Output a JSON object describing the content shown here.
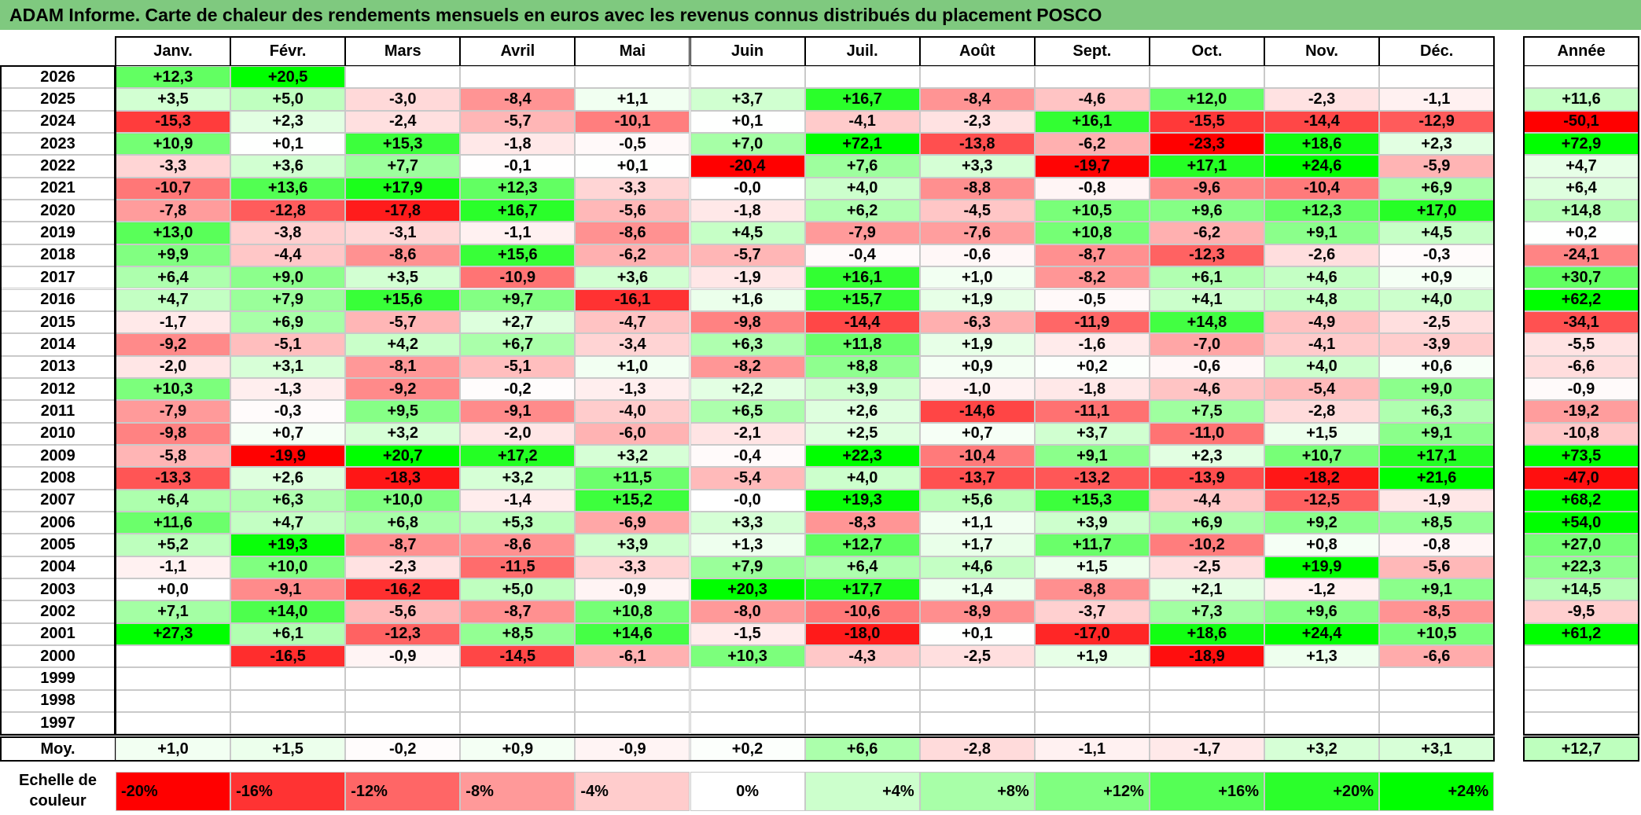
{
  "title": "ADAM Informe. Carte de chaleur des rendements mensuels en euros avec les revenus connus distribués du placement POSCO",
  "chart_data": {
    "type": "heatmap",
    "columns": [
      "Janv.",
      "Févr.",
      "Mars",
      "Avril",
      "Mai",
      "Juin",
      "Juil.",
      "Août",
      "Sept.",
      "Oct.",
      "Nov.",
      "Déc."
    ],
    "year_header": "Année",
    "rows": [
      {
        "year": "2026",
        "months": [
          "+12,3",
          "+20,5",
          "",
          "",
          "",
          "",
          "",
          "",
          "",
          "",
          "",
          ""
        ],
        "annual": ""
      },
      {
        "year": "2025",
        "months": [
          "+3,5",
          "+5,0",
          "-3,0",
          "-8,4",
          "+1,1",
          "+3,7",
          "+16,7",
          "-8,4",
          "-4,6",
          "+12,0",
          "-2,3",
          "-1,1"
        ],
        "annual": "+11,6"
      },
      {
        "year": "2024",
        "months": [
          "-15,3",
          "+2,3",
          "-2,4",
          "-5,7",
          "-10,1",
          "+0,1",
          "-4,1",
          "-2,3",
          "+16,1",
          "-15,5",
          "-14,4",
          "-12,9"
        ],
        "annual": "-50,1"
      },
      {
        "year": "2023",
        "months": [
          "+10,9",
          "+0,1",
          "+15,3",
          "-1,8",
          "-0,5",
          "+7,0",
          "+72,1",
          "-13,8",
          "-6,2",
          "-23,3",
          "+18,6",
          "+2,3"
        ],
        "annual": "+72,9"
      },
      {
        "year": "2022",
        "months": [
          "-3,3",
          "+3,6",
          "+7,7",
          "-0,1",
          "+0,1",
          "-20,4",
          "+7,6",
          "+3,3",
          "-19,7",
          "+17,1",
          "+24,6",
          "-5,9"
        ],
        "annual": "+4,7"
      },
      {
        "year": "2021",
        "months": [
          "-10,7",
          "+13,6",
          "+17,9",
          "+12,3",
          "-3,3",
          "-0,0",
          "+4,0",
          "-8,8",
          "-0,8",
          "-9,6",
          "-10,4",
          "+6,9"
        ],
        "annual": "+6,4"
      },
      {
        "year": "2020",
        "months": [
          "-7,8",
          "-12,8",
          "-17,8",
          "+16,7",
          "-5,6",
          "-1,8",
          "+6,2",
          "-4,5",
          "+10,5",
          "+9,6",
          "+12,3",
          "+17,0"
        ],
        "annual": "+14,8"
      },
      {
        "year": "2019",
        "months": [
          "+13,0",
          "-3,8",
          "-3,1",
          "-1,1",
          "-8,6",
          "+4,5",
          "-7,9",
          "-7,6",
          "+10,8",
          "-6,2",
          "+9,1",
          "+4,5"
        ],
        "annual": "+0,2"
      },
      {
        "year": "2018",
        "months": [
          "+9,9",
          "-4,4",
          "-8,6",
          "+15,6",
          "-6,2",
          "-5,7",
          "-0,4",
          "-0,6",
          "-8,7",
          "-12,3",
          "-2,6",
          "-0,3"
        ],
        "annual": "-24,1"
      },
      {
        "year": "2017",
        "months": [
          "+6,4",
          "+9,0",
          "+3,5",
          "-10,9",
          "+3,6",
          "-1,9",
          "+16,1",
          "+1,0",
          "-8,2",
          "+6,1",
          "+4,6",
          "+0,9"
        ],
        "annual": "+30,7"
      },
      {
        "year": "2016",
        "months": [
          "+4,7",
          "+7,9",
          "+15,6",
          "+9,7",
          "-16,1",
          "+1,6",
          "+15,7",
          "+1,9",
          "-0,5",
          "+4,1",
          "+4,8",
          "+4,0"
        ],
        "annual": "+62,2"
      },
      {
        "year": "2015",
        "months": [
          "-1,7",
          "+6,9",
          "-5,7",
          "+2,7",
          "-4,7",
          "-9,8",
          "-14,4",
          "-6,3",
          "-11,9",
          "+14,8",
          "-4,9",
          "-2,5"
        ],
        "annual": "-34,1"
      },
      {
        "year": "2014",
        "months": [
          "-9,2",
          "-5,1",
          "+4,2",
          "+6,7",
          "-3,4",
          "+6,3",
          "+11,8",
          "+1,9",
          "-1,6",
          "-7,0",
          "-4,1",
          "-3,9"
        ],
        "annual": "-5,5"
      },
      {
        "year": "2013",
        "months": [
          "-2,0",
          "+3,1",
          "-8,1",
          "-5,1",
          "+1,0",
          "-8,2",
          "+8,8",
          "+0,9",
          "+0,2",
          "-0,6",
          "+4,0",
          "+0,6"
        ],
        "annual": "-6,6"
      },
      {
        "year": "2012",
        "months": [
          "+10,3",
          "-1,3",
          "-9,2",
          "-0,2",
          "-1,3",
          "+2,2",
          "+3,9",
          "-1,0",
          "-1,8",
          "-4,6",
          "-5,4",
          "+9,0"
        ],
        "annual": "-0,9"
      },
      {
        "year": "2011",
        "months": [
          "-7,9",
          "-0,3",
          "+9,5",
          "-9,1",
          "-4,0",
          "+6,5",
          "+2,6",
          "-14,6",
          "-11,1",
          "+7,5",
          "-2,8",
          "+6,3"
        ],
        "annual": "-19,2"
      },
      {
        "year": "2010",
        "months": [
          "-9,8",
          "+0,7",
          "+3,2",
          "-2,0",
          "-6,0",
          "-2,1",
          "+2,5",
          "+0,7",
          "+3,7",
          "-11,0",
          "+1,5",
          "+9,1"
        ],
        "annual": "-10,8"
      },
      {
        "year": "2009",
        "months": [
          "-5,8",
          "-19,9",
          "+20,7",
          "+17,2",
          "+3,2",
          "-0,4",
          "+22,3",
          "-10,4",
          "+9,1",
          "+2,3",
          "+10,7",
          "+17,1"
        ],
        "annual": "+73,5"
      },
      {
        "year": "2008",
        "months": [
          "-13,3",
          "+2,6",
          "-18,3",
          "+3,2",
          "+11,5",
          "-5,4",
          "+4,0",
          "-13,7",
          "-13,2",
          "-13,9",
          "-18,2",
          "+21,6"
        ],
        "annual": "-47,0"
      },
      {
        "year": "2007",
        "months": [
          "+6,4",
          "+6,3",
          "+10,0",
          "-1,4",
          "+15,2",
          "-0,0",
          "+19,3",
          "+5,6",
          "+15,3",
          "-4,4",
          "-12,5",
          "-1,9"
        ],
        "annual": "+68,2"
      },
      {
        "year": "2006",
        "months": [
          "+11,6",
          "+4,7",
          "+6,8",
          "+5,3",
          "-6,9",
          "+3,3",
          "-8,3",
          "+1,1",
          "+3,9",
          "+6,9",
          "+9,2",
          "+8,5"
        ],
        "annual": "+54,0"
      },
      {
        "year": "2005",
        "months": [
          "+5,2",
          "+19,3",
          "-8,7",
          "-8,6",
          "+3,9",
          "+1,3",
          "+12,7",
          "+1,7",
          "+11,7",
          "-10,2",
          "+0,8",
          "-0,8"
        ],
        "annual": "+27,0"
      },
      {
        "year": "2004",
        "months": [
          "-1,1",
          "+10,0",
          "-2,3",
          "-11,5",
          "-3,3",
          "+7,9",
          "+6,4",
          "+4,6",
          "+1,5",
          "-2,5",
          "+19,9",
          "-5,6"
        ],
        "annual": "+22,3"
      },
      {
        "year": "2003",
        "months": [
          "+0,0",
          "-9,1",
          "-16,2",
          "+5,0",
          "-0,9",
          "+20,3",
          "+17,7",
          "+1,4",
          "-8,8",
          "+2,1",
          "-1,2",
          "+9,1"
        ],
        "annual": "+14,5"
      },
      {
        "year": "2002",
        "months": [
          "+7,1",
          "+14,0",
          "-5,6",
          "-8,7",
          "+10,8",
          "-8,0",
          "-10,6",
          "-8,9",
          "-3,7",
          "+7,3",
          "+9,6",
          "-8,5"
        ],
        "annual": "-9,5"
      },
      {
        "year": "2001",
        "months": [
          "+27,3",
          "+6,1",
          "-12,3",
          "+8,5",
          "+14,6",
          "-1,5",
          "-18,0",
          "+0,1",
          "-17,0",
          "+18,6",
          "+24,4",
          "+10,5"
        ],
        "annual": "+61,2"
      },
      {
        "year": "2000",
        "months": [
          "",
          "-16,5",
          "-0,9",
          "-14,5",
          "-6,1",
          "+10,3",
          "-4,3",
          "-2,5",
          "+1,9",
          "-18,9",
          "+1,3",
          "-6,6"
        ],
        "annual": ""
      },
      {
        "year": "1999",
        "months": [
          "",
          "",
          "",
          "",
          "",
          "",
          "",
          "",
          "",
          "",
          "",
          ""
        ],
        "annual": ""
      },
      {
        "year": "1998",
        "months": [
          "",
          "",
          "",
          "",
          "",
          "",
          "",
          "",
          "",
          "",
          "",
          ""
        ],
        "annual": ""
      },
      {
        "year": "1997",
        "months": [
          "",
          "",
          "",
          "",
          "",
          "",
          "",
          "",
          "",
          "",
          "",
          ""
        ],
        "annual": ""
      }
    ],
    "average": {
      "label": "Moy.",
      "months": [
        "+1,0",
        "+1,5",
        "-0,2",
        "+0,9",
        "-0,9",
        "+0,2",
        "+6,6",
        "-2,8",
        "-1,1",
        "-1,7",
        "+3,2",
        "+3,1"
      ],
      "annual": "+12,7"
    },
    "color_scale": {
      "label_line1": "Echelle de",
      "label_line2": "couleur",
      "steps": [
        {
          "label": "-20%",
          "color": "#ff0000"
        },
        {
          "label": "-16%",
          "color": "#ff3333"
        },
        {
          "label": "-12%",
          "color": "#ff6666"
        },
        {
          "label": "-8%",
          "color": "#ff9999"
        },
        {
          "label": "-4%",
          "color": "#ffcccc"
        },
        {
          "label": "0%",
          "color": "#ffffff"
        },
        {
          "label": "+4%",
          "color": "#ccffcc"
        },
        {
          "label": "+8%",
          "color": "#a8ffa8"
        },
        {
          "label": "+12%",
          "color": "#80ff80"
        },
        {
          "label": "+16%",
          "color": "#55ff55"
        },
        {
          "label": "+20%",
          "color": "#2bff2b"
        },
        {
          "label": "+24%",
          "color": "#00ff00"
        }
      ]
    },
    "title_bar_color": "#7fc97f"
  }
}
